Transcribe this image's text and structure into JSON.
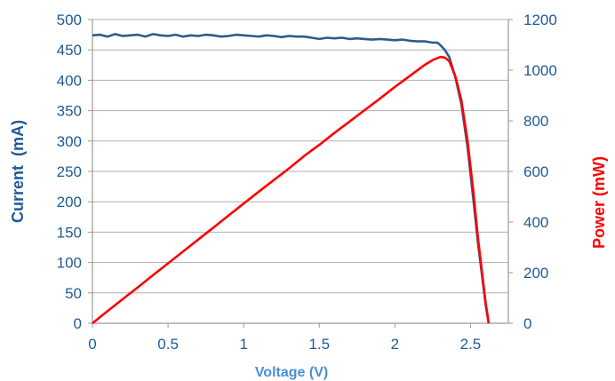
{
  "colors": {
    "current": "#2e5b8c",
    "power": "#ff0000",
    "axis_text_left": "#1f5a96",
    "axis_text_right": "#1f5a96",
    "power_title": "#ff0000",
    "grid": "#b0b0b0",
    "voltage_title": "#4a8fd6"
  },
  "chart_data": {
    "type": "line",
    "title": "",
    "xlabel": "Voltage (V)",
    "ylabel": "Current  (mA)",
    "y2label": "Power (mW)",
    "xlim": [
      0,
      2.75
    ],
    "ylim": [
      0,
      500
    ],
    "y2lim": [
      0,
      1200
    ],
    "grid": true,
    "x_ticks": [
      0,
      0.5,
      1,
      1.5,
      2,
      2.5
    ],
    "x_tick_labels": [
      "0",
      "0.5",
      "1",
      "1.5",
      "2",
      "2.5"
    ],
    "y_ticks": [
      0,
      50,
      100,
      150,
      200,
      250,
      300,
      350,
      400,
      450,
      500
    ],
    "y_tick_labels": [
      "0",
      "50",
      "100",
      "150",
      "200",
      "250",
      "300",
      "350",
      "400",
      "450",
      "500"
    ],
    "y2_ticks": [
      0,
      200,
      400,
      600,
      800,
      1000,
      1200
    ],
    "y2_tick_labels": [
      "0",
      "200",
      "400",
      "600",
      "800",
      "1000",
      "1200"
    ],
    "series": [
      {
        "name": "",
        "axis": "left",
        "x": [
          0,
          0.05,
          0.1,
          0.15,
          0.2,
          0.25,
          0.3,
          0.35,
          0.4,
          0.45,
          0.5,
          0.55,
          0.6,
          0.65,
          0.7,
          0.75,
          0.8,
          0.85,
          0.9,
          0.95,
          1.0,
          1.05,
          1.1,
          1.15,
          1.2,
          1.25,
          1.3,
          1.35,
          1.4,
          1.45,
          1.5,
          1.55,
          1.6,
          1.65,
          1.7,
          1.75,
          1.8,
          1.85,
          1.9,
          1.95,
          2.0,
          2.05,
          2.1,
          2.15,
          2.2,
          2.25,
          2.28,
          2.3,
          2.33,
          2.36,
          2.4,
          2.44,
          2.48,
          2.52,
          2.55,
          2.58,
          2.6,
          2.62
        ],
        "y": [
          474,
          475,
          472,
          476,
          473,
          474,
          475,
          472,
          476,
          474,
          473,
          475,
          472,
          474,
          473,
          475,
          474,
          472,
          473,
          475,
          474,
          473,
          472,
          474,
          473,
          471,
          473,
          472,
          472,
          470,
          468,
          470,
          469,
          470,
          468,
          469,
          468,
          467,
          468,
          467,
          466,
          467,
          465,
          464,
          464,
          462,
          462,
          458,
          450,
          438,
          405,
          360,
          290,
          200,
          130,
          70,
          30,
          0
        ]
      },
      {
        "name": "",
        "axis": "right",
        "x": [
          0,
          0.1,
          0.2,
          0.3,
          0.4,
          0.5,
          0.6,
          0.7,
          0.8,
          0.9,
          1.0,
          1.1,
          1.2,
          1.3,
          1.4,
          1.5,
          1.6,
          1.7,
          1.8,
          1.9,
          2.0,
          2.1,
          2.2,
          2.25,
          2.3,
          2.33,
          2.36,
          2.4,
          2.44,
          2.48,
          2.52,
          2.55,
          2.58,
          2.6,
          2.62
        ],
        "y": [
          0,
          48,
          95,
          142,
          190,
          237,
          284,
          331,
          378,
          426,
          473,
          520,
          566,
          612,
          661,
          705,
          752,
          797,
          842,
          887,
          934,
          978,
          1022,
          1040,
          1052,
          1050,
          1035,
          975,
          880,
          720,
          510,
          330,
          180,
          80,
          0
        ]
      }
    ]
  }
}
